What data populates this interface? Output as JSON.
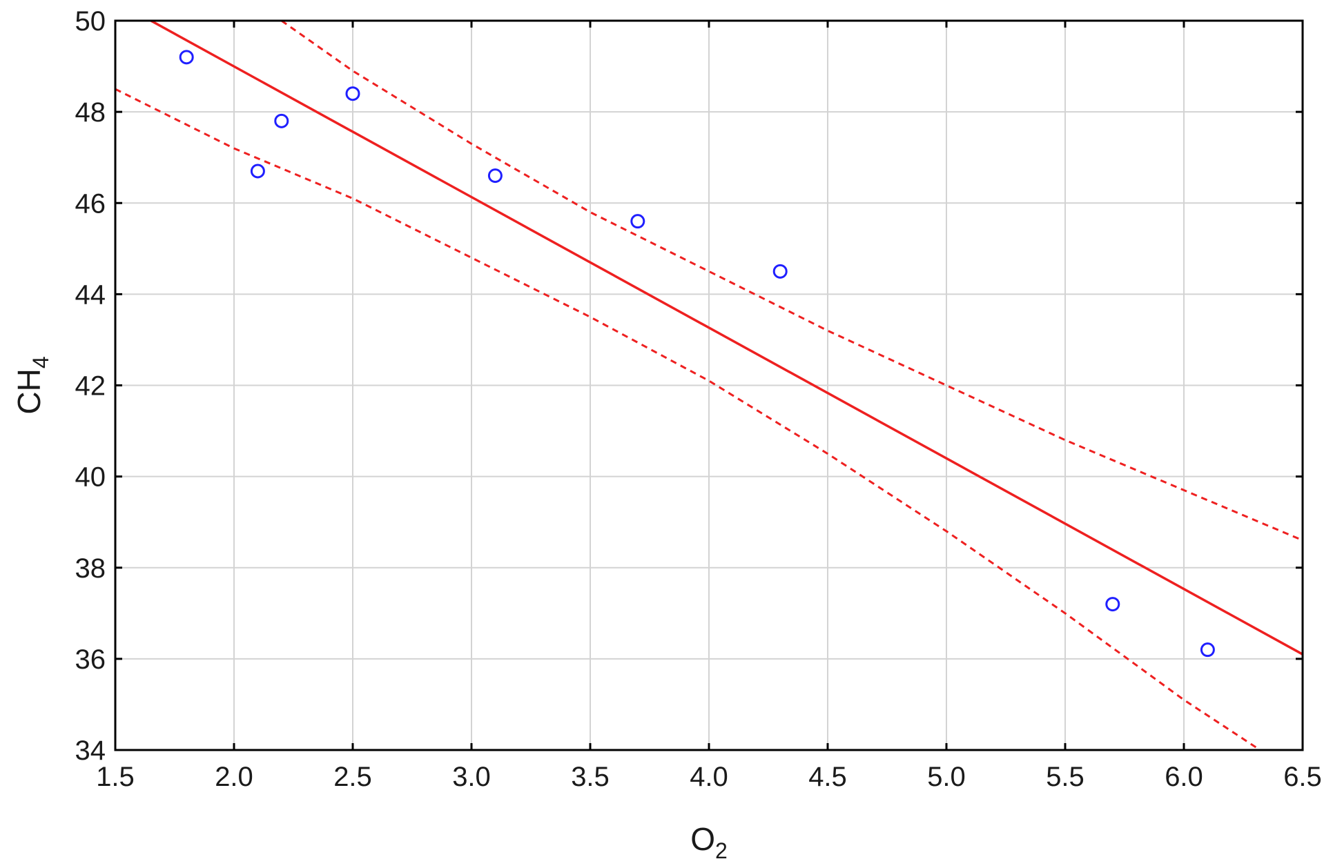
{
  "chart_data": {
    "type": "scatter",
    "xlabel": {
      "main": "O",
      "sub": "2"
    },
    "ylabel": {
      "main": "CH",
      "sub": "4"
    },
    "xlim": [
      1.5,
      6.5
    ],
    "ylim": [
      34,
      50
    ],
    "x_ticks": [
      "1.5",
      "2.0",
      "2.5",
      "3.0",
      "3.5",
      "4.0",
      "4.5",
      "5.0",
      "5.5",
      "6.0",
      "6.5"
    ],
    "y_ticks": [
      "34",
      "36",
      "38",
      "40",
      "42",
      "44",
      "46",
      "48",
      "50"
    ],
    "grid": true,
    "points": [
      {
        "x": 1.8,
        "y": 49.2
      },
      {
        "x": 2.1,
        "y": 46.7
      },
      {
        "x": 2.2,
        "y": 47.8
      },
      {
        "x": 2.5,
        "y": 48.4
      },
      {
        "x": 3.1,
        "y": 46.6
      },
      {
        "x": 3.7,
        "y": 45.6
      },
      {
        "x": 4.3,
        "y": 44.5
      },
      {
        "x": 5.7,
        "y": 37.2
      },
      {
        "x": 6.1,
        "y": 36.2
      }
    ],
    "fit_line": [
      [
        1.65,
        50.0
      ],
      [
        6.5,
        36.1
      ]
    ],
    "confidence_upper": [
      [
        2.2,
        50.0
      ],
      [
        2.5,
        48.9
      ],
      [
        3.0,
        47.3
      ],
      [
        3.5,
        45.8
      ],
      [
        4.0,
        44.5
      ],
      [
        4.5,
        43.2
      ],
      [
        5.0,
        42.0
      ],
      [
        5.5,
        40.8
      ],
      [
        6.0,
        39.7
      ],
      [
        6.5,
        38.6
      ]
    ],
    "confidence_lower": [
      [
        1.5,
        48.5
      ],
      [
        2.0,
        47.2
      ],
      [
        2.5,
        46.1
      ],
      [
        3.0,
        44.8
      ],
      [
        3.5,
        43.5
      ],
      [
        4.0,
        42.1
      ],
      [
        4.5,
        40.5
      ],
      [
        5.0,
        38.8
      ],
      [
        5.5,
        37.0
      ],
      [
        6.0,
        35.1
      ],
      [
        6.35,
        33.9
      ]
    ],
    "colors": {
      "points": "#1f1fff",
      "lines": "#ee2020",
      "grid": "#d3d3d3",
      "frame": "#000000"
    }
  }
}
